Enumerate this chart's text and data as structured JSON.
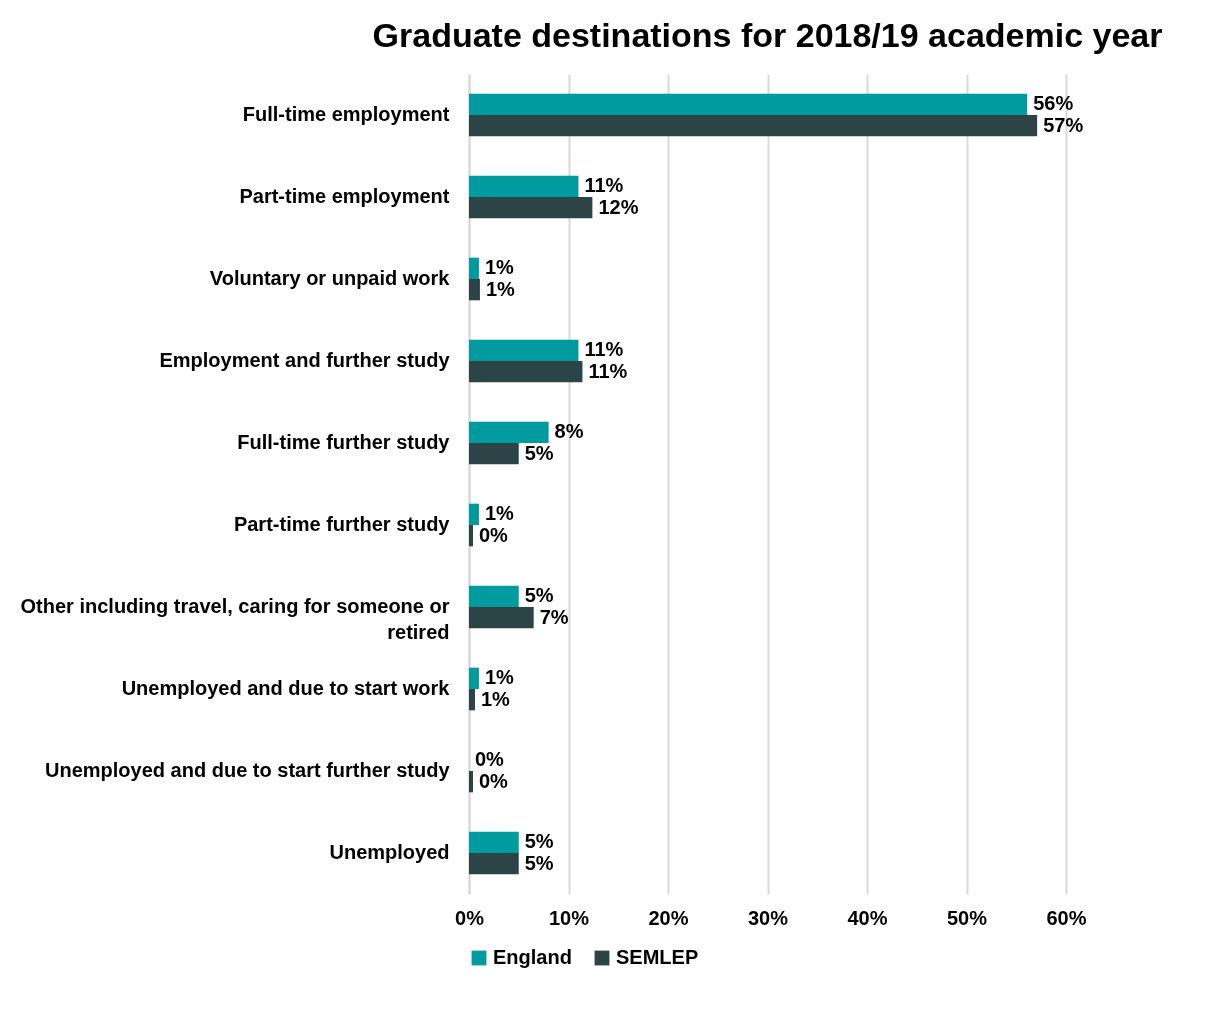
{
  "chart_data": {
    "type": "bar",
    "orientation": "horizontal",
    "title": "Graduate destinations for 2018/19 academic year",
    "categories": [
      "Full-time employment",
      "Part-time employment",
      "Voluntary or unpaid work",
      "Employment and further study",
      "Full-time further study",
      "Part-time further study",
      "Other including travel, caring for someone or retired",
      "Unemployed and due to start work",
      "Unemployed and due to start further study",
      "Unemployed"
    ],
    "series": [
      {
        "name": "England",
        "color": "#009b9e",
        "values": [
          56.1,
          11,
          1,
          11,
          8,
          1,
          5,
          1,
          0,
          5
        ],
        "value_labels": [
          "56%",
          "11%",
          "1%",
          "11%",
          "8%",
          "1%",
          "5%",
          "1%",
          "0%",
          "5%"
        ]
      },
      {
        "name": "SEMLEP",
        "color": "#2d4446",
        "values": [
          57.1,
          12.4,
          1.1,
          11.4,
          5,
          0.4,
          6.5,
          0.6,
          0.4,
          5
        ],
        "value_labels": [
          "57%",
          "12%",
          "1%",
          "11%",
          "5%",
          "0%",
          "7%",
          "1%",
          "0%",
          "5%"
        ]
      }
    ],
    "xlim": [
      0,
      60
    ],
    "xticks": [
      {
        "value": 0,
        "label": "0%"
      },
      {
        "value": 10,
        "label": "10%"
      },
      {
        "value": 20,
        "label": "20%"
      },
      {
        "value": 30,
        "label": "30%"
      },
      {
        "value": 40,
        "label": "40%"
      },
      {
        "value": 50,
        "label": "50%"
      },
      {
        "value": 60,
        "label": "60%"
      }
    ],
    "grid": "x",
    "legend": "bottom"
  }
}
